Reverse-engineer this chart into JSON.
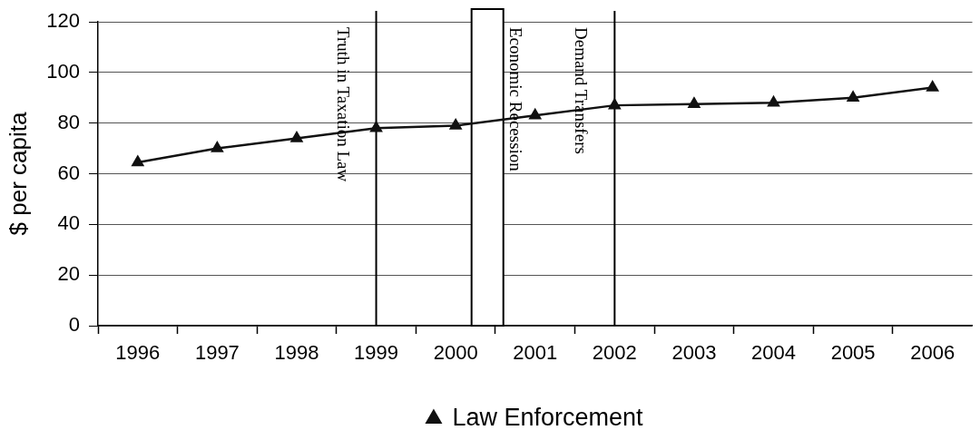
{
  "chart_data": {
    "type": "line",
    "x": [
      1996,
      1997,
      1998,
      1999,
      2000,
      2001,
      2002,
      2003,
      2004,
      2005,
      2006
    ],
    "series": [
      {
        "name": "Law Enforcement",
        "color": "#111111",
        "values": [
          64.5,
          70,
          74,
          78,
          79,
          83,
          87,
          87.5,
          88,
          90,
          94
        ]
      }
    ],
    "ylabel": "$ per capita",
    "xlim": [
      1995.5,
      2006.5
    ],
    "xticks": [
      {
        "value": 1995.5,
        "label": null
      },
      1996,
      {
        "value": 1996.5,
        "label": null
      },
      1997,
      {
        "value": 1997.5,
        "label": null
      },
      1998,
      {
        "value": 1998.5,
        "label": null
      },
      1999,
      {
        "value": 1999.5,
        "label": null
      },
      2000,
      {
        "value": 2000.5,
        "label": null
      },
      2001,
      {
        "value": 2001.5,
        "label": null
      },
      2002,
      {
        "value": 2002.5,
        "label": null
      },
      2003,
      {
        "value": 2003.5,
        "label": null
      },
      2004,
      {
        "value": 2004.5,
        "label": null
      },
      2005,
      {
        "value": 2005.5,
        "label": null
      },
      2006
    ],
    "ylim": [
      0,
      120
    ],
    "yticks": [
      0,
      20,
      40,
      60,
      80,
      100,
      120
    ],
    "grid": "y",
    "legend": "bottom",
    "marker": "triangle",
    "ref_lines": [
      {
        "axis": "x",
        "value": 1999,
        "label": "Truth in Taxation Law",
        "color": "#000000"
      },
      {
        "axis": "x",
        "value": 2002,
        "label": "Demand Transfers",
        "color": "#000000"
      }
    ],
    "bands": [
      {
        "axis": "x",
        "from": 2000.2,
        "to": 2000.6,
        "label": "Economic Recession",
        "color": "#ffffff"
      }
    ]
  }
}
